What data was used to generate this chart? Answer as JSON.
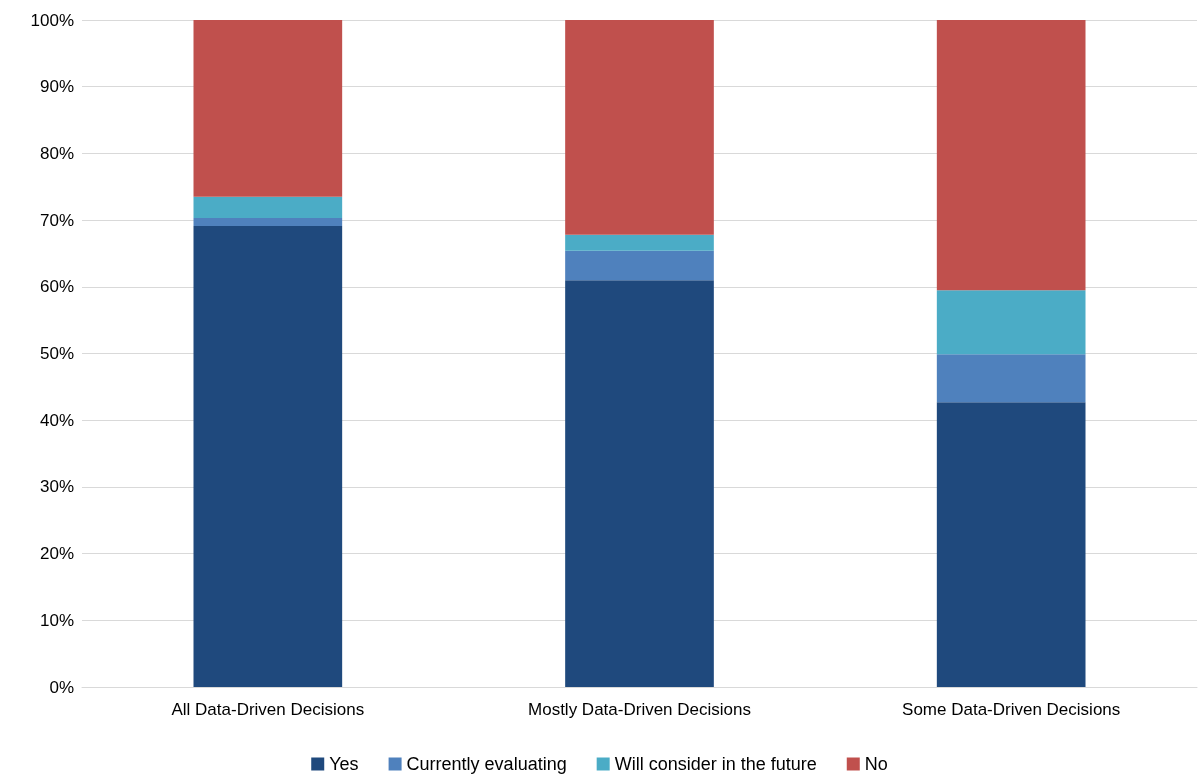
{
  "chart_data": {
    "type": "bar",
    "stacked": true,
    "categories": [
      "All Data-Driven Decisions",
      "Mostly Data-Driven Decisions",
      "Some Data-Driven Decisions"
    ],
    "series": [
      {
        "name": "Yes",
        "color": "#1f497d",
        "values": [
          69.1,
          61.0,
          42.7
        ]
      },
      {
        "name": "Currently evaluating",
        "color": "#4f81bd",
        "values": [
          1.2,
          4.4,
          7.2
        ]
      },
      {
        "name": "Will consider in the future",
        "color": "#4bacc6",
        "values": [
          3.2,
          2.4,
          9.6
        ]
      },
      {
        "name": "No",
        "color": "#c0504d",
        "values": [
          26.5,
          32.2,
          40.5
        ]
      }
    ],
    "ylim": [
      0,
      100
    ],
    "yticks": [
      {
        "value": 0,
        "label": "0%"
      },
      {
        "value": 10,
        "label": "10%"
      },
      {
        "value": 20,
        "label": "20%"
      },
      {
        "value": 30,
        "label": "30%"
      },
      {
        "value": 40,
        "label": "40%"
      },
      {
        "value": 50,
        "label": "50%"
      },
      {
        "value": 60,
        "label": "60%"
      },
      {
        "value": 70,
        "label": "70%"
      },
      {
        "value": 80,
        "label": "80%"
      },
      {
        "value": 90,
        "label": "90%"
      },
      {
        "value": 100,
        "label": "100%"
      }
    ],
    "grid": "y",
    "legend": "bottom"
  }
}
